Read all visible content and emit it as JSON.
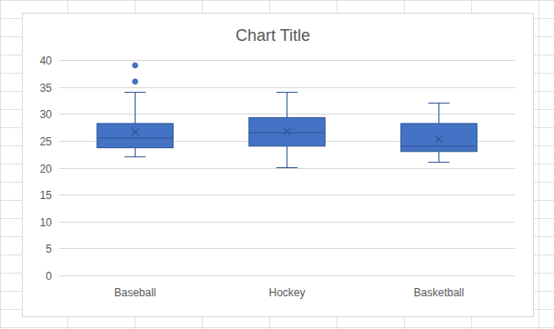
{
  "chart_data": {
    "type": "box",
    "title": "Chart Title",
    "categories": [
      "Baseball",
      "Hockey",
      "Basketball"
    ],
    "boxes": [
      {
        "min": 22,
        "q1": 23.7,
        "median": 25.5,
        "q3": 28.2,
        "max": 34,
        "mean": 26.7,
        "outliers": [
          36,
          39
        ]
      },
      {
        "min": 20,
        "q1": 24,
        "median": 26.5,
        "q3": 29.3,
        "max": 34,
        "mean": 26.7,
        "outliers": []
      },
      {
        "min": 21,
        "q1": 23,
        "median": 24,
        "q3": 28.2,
        "max": 32,
        "mean": 25.3,
        "outliers": []
      }
    ],
    "color": "#4472c4",
    "marker": "x",
    "ylim": [
      0,
      40
    ],
    "yticks": [
      0,
      5,
      10,
      15,
      20,
      25,
      30,
      35,
      40
    ],
    "grid": true
  }
}
